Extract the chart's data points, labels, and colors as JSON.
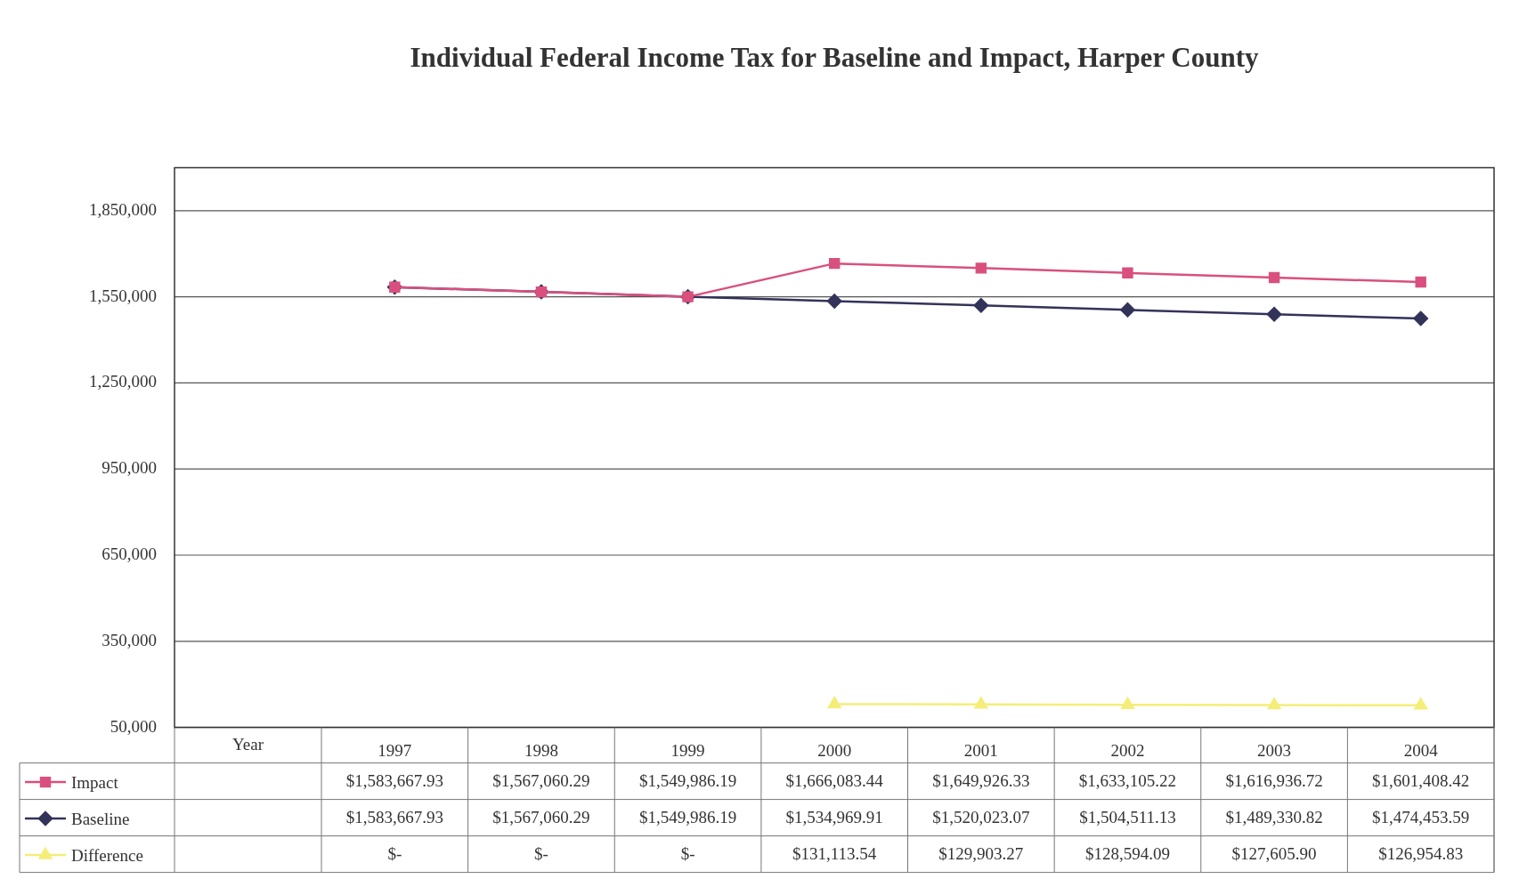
{
  "chart_data": {
    "type": "line",
    "title": "Individual Federal Income Tax for Baseline and Impact, Harper County",
    "xlabel": "Year",
    "categories": [
      "1997",
      "1998",
      "1999",
      "2000",
      "2001",
      "2002",
      "2003",
      "2004"
    ],
    "series": [
      {
        "name": "Impact",
        "color": "#d9507e",
        "marker": "square",
        "values": [
          1583667.93,
          1567060.29,
          1549986.19,
          1666083.44,
          1649926.33,
          1633105.22,
          1616936.72,
          1601408.42
        ],
        "value_labels": [
          "$1,583,667.93",
          "$1,567,060.29",
          "$1,549,986.19",
          "$1,666,083.44",
          "$1,649,926.33",
          "$1,633,105.22",
          "$1,616,936.72",
          "$1,601,408.42"
        ]
      },
      {
        "name": "Baseline",
        "color": "#33335a",
        "marker": "diamond",
        "values": [
          1583667.93,
          1567060.29,
          1549986.19,
          1534969.91,
          1520023.07,
          1504511.13,
          1489330.82,
          1474453.59
        ],
        "value_labels": [
          "$1,583,667.93",
          "$1,567,060.29",
          "$1,549,986.19",
          "$1,534,969.91",
          "$1,520,023.07",
          "$1,504,511.13",
          "$1,489,330.82",
          "$1,474,453.59"
        ]
      },
      {
        "name": "Difference",
        "color": "#f4ee78",
        "marker": "triangle",
        "values": [
          null,
          null,
          null,
          131113.54,
          129903.27,
          128594.09,
          127605.9,
          126954.83
        ],
        "value_labels": [
          "$-",
          "$-",
          "$-",
          "$131,113.54",
          "$129,903.27",
          "$128,594.09",
          "$127,605.90",
          "$126,954.83"
        ]
      }
    ],
    "ylim": [
      50000,
      2000000
    ],
    "yticks": [
      {
        "value": 50000,
        "label": "50,000"
      },
      {
        "value": 350000,
        "label": "350,000"
      },
      {
        "value": 650000,
        "label": "650,000"
      },
      {
        "value": 950000,
        "label": "950,000"
      },
      {
        "value": 1250000,
        "label": "1,250,000"
      },
      {
        "value": 1550000,
        "label": "1,550,000"
      },
      {
        "value": 1850000,
        "label": "1,850,000"
      }
    ],
    "grid": "y",
    "legend": "bottom"
  }
}
